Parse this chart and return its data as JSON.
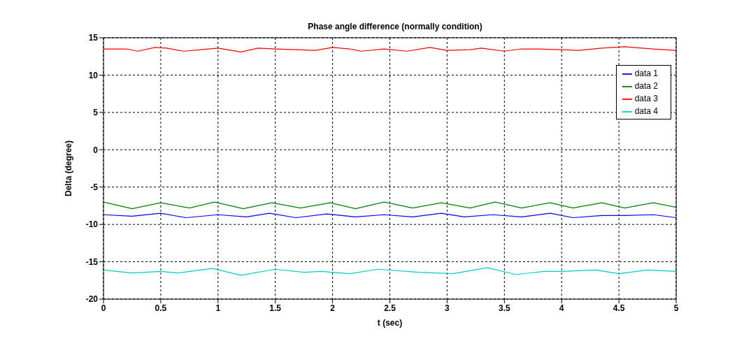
{
  "chart_data": {
    "type": "line",
    "title": "Phase angle difference (normally condition)",
    "xlabel": "t (sec)",
    "ylabel": "Delta (degree)",
    "xlim": [
      0,
      5
    ],
    "xticks": [
      0,
      0.5,
      1,
      1.5,
      2,
      2.5,
      3,
      3.5,
      4,
      4.5,
      5
    ],
    "ylim": [
      -20,
      15
    ],
    "yticks": [
      -20,
      -15,
      -10,
      -5,
      0,
      5,
      10,
      15
    ],
    "grid": true,
    "legend": "top right",
    "marker": "none",
    "line_style": "solid",
    "series": [
      {
        "name": "data 1",
        "color": "#0000ff",
        "x": [
          0,
          0.25,
          0.5,
          0.72,
          1.0,
          1.25,
          1.45,
          1.68,
          1.95,
          2.2,
          2.45,
          2.7,
          2.95,
          3.15,
          3.4,
          3.65,
          3.9,
          4.1,
          4.35,
          4.55,
          4.8,
          5
        ],
        "values": [
          -8.7,
          -8.9,
          -8.5,
          -9.1,
          -8.7,
          -9.0,
          -8.5,
          -9.1,
          -8.6,
          -9.0,
          -8.7,
          -9.0,
          -8.5,
          -9.0,
          -8.7,
          -9.0,
          -8.5,
          -9.1,
          -8.8,
          -8.8,
          -8.7,
          -9.1
        ]
      },
      {
        "name": "data 2",
        "color": "#008000",
        "x": [
          0,
          0.25,
          0.5,
          0.75,
          0.97,
          1.22,
          1.47,
          1.72,
          1.98,
          2.2,
          2.45,
          2.7,
          2.95,
          3.2,
          3.42,
          3.65,
          3.9,
          4.1,
          4.35,
          4.55,
          4.8,
          5
        ],
        "values": [
          -7.0,
          -7.9,
          -7.1,
          -7.8,
          -7.0,
          -7.9,
          -7.1,
          -7.8,
          -7.1,
          -7.9,
          -7.0,
          -7.8,
          -7.1,
          -7.8,
          -7.0,
          -7.8,
          -7.1,
          -7.8,
          -7.1,
          -7.8,
          -7.1,
          -7.7
        ]
      },
      {
        "name": "data 3",
        "color": "#ff0000",
        "x": [
          0,
          0.2,
          0.3,
          0.45,
          0.55,
          0.7,
          0.85,
          1.0,
          1.2,
          1.35,
          1.5,
          1.7,
          1.85,
          2.0,
          2.15,
          2.25,
          2.45,
          2.65,
          2.85,
          3.0,
          3.2,
          3.3,
          3.5,
          3.65,
          3.8,
          4.0,
          4.15,
          4.35,
          4.55,
          4.8,
          5
        ],
        "values": [
          13.5,
          13.5,
          13.2,
          13.7,
          13.6,
          13.2,
          13.4,
          13.6,
          13.1,
          13.6,
          13.5,
          13.4,
          13.3,
          13.7,
          13.5,
          13.2,
          13.5,
          13.2,
          13.7,
          13.3,
          13.4,
          13.6,
          13.2,
          13.5,
          13.5,
          13.4,
          13.3,
          13.6,
          13.8,
          13.5,
          13.3
        ]
      },
      {
        "name": "data 4",
        "color": "#00cccc",
        "x": [
          0,
          0.25,
          0.5,
          0.65,
          0.95,
          1.2,
          1.5,
          1.75,
          1.9,
          2.15,
          2.4,
          2.75,
          3.05,
          3.35,
          3.6,
          3.85,
          4.0,
          4.3,
          4.5,
          4.75,
          5
        ],
        "values": [
          -16.1,
          -16.5,
          -16.3,
          -16.5,
          -15.9,
          -16.8,
          -16.0,
          -16.4,
          -16.3,
          -16.6,
          -16.0,
          -16.4,
          -16.6,
          -15.8,
          -16.7,
          -16.3,
          -16.3,
          -16.1,
          -16.6,
          -16.1,
          -16.3
        ]
      }
    ]
  }
}
